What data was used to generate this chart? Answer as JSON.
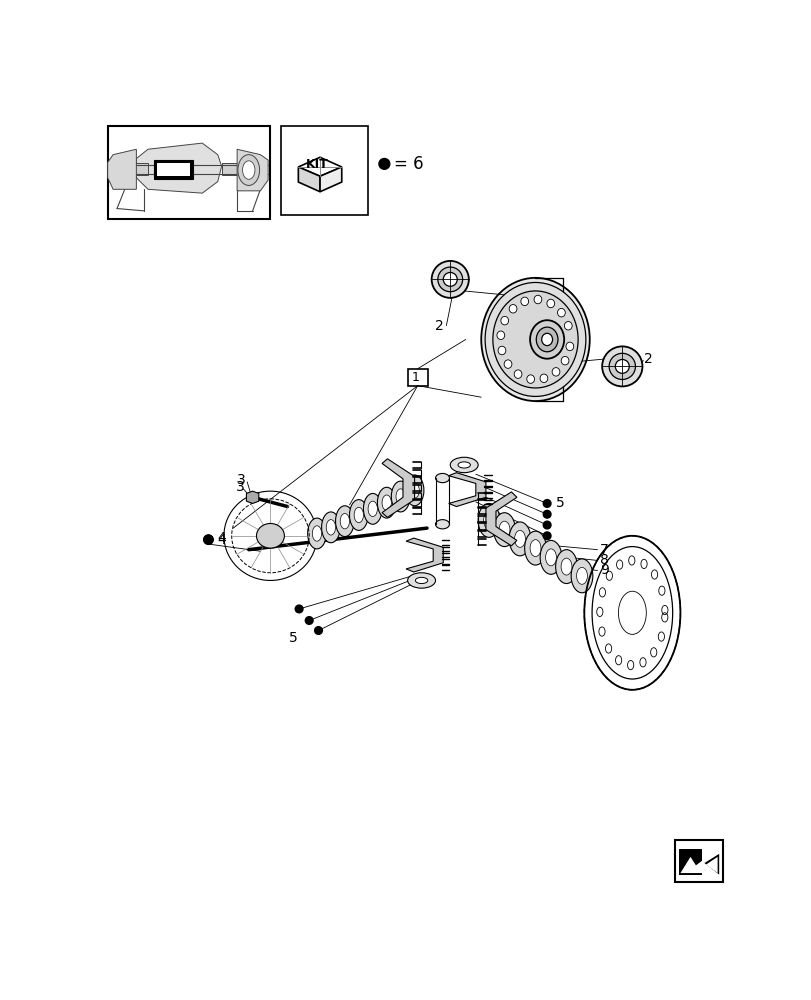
{
  "bg_color": "#ffffff",
  "fig_width": 8.12,
  "fig_height": 10.0,
  "dpi": 100
}
